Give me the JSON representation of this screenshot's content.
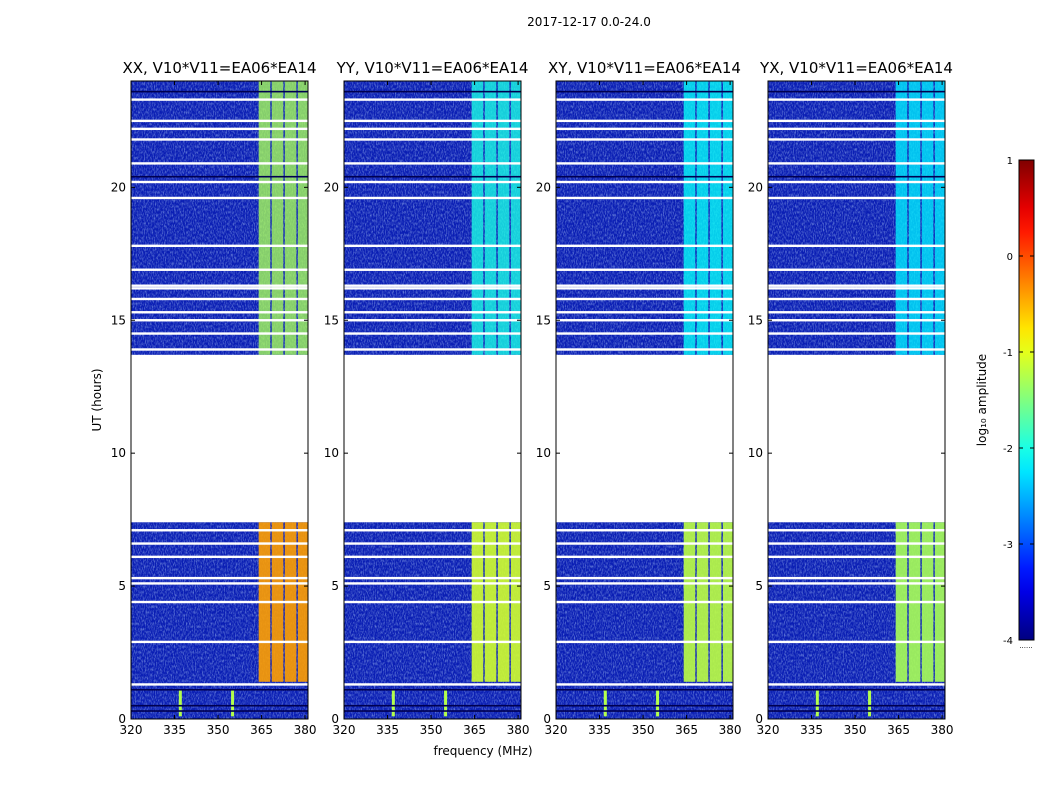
{
  "suptitle": "2017-12-17 0.0-24.0",
  "chart_data": [
    {
      "type": "heatmap",
      "title": "XX, V10*V11=EA06*EA14",
      "polarization": "XX",
      "xlabel": "",
      "ylabel": "UT (hours)",
      "xlim": [
        320,
        381
      ],
      "ylim": [
        0,
        24
      ],
      "xticks": [
        320,
        335,
        350,
        365,
        380
      ],
      "yticks": [
        0,
        5,
        10,
        15,
        20
      ],
      "band_log_amplitude": -0.4
    },
    {
      "type": "heatmap",
      "title": "YY, V10*V11=EA06*EA14",
      "polarization": "YY",
      "xlabel": "",
      "ylabel": "",
      "xlim": [
        320,
        381
      ],
      "ylim": [
        0,
        24
      ],
      "xticks": [
        320,
        335,
        350,
        365,
        380
      ],
      "yticks": [
        0,
        5,
        10,
        15,
        20
      ],
      "band_log_amplitude": -1.1
    },
    {
      "type": "heatmap",
      "title": "XY, V10*V11=EA06*EA14",
      "polarization": "XY",
      "xlabel": "",
      "ylabel": "",
      "xlim": [
        320,
        381
      ],
      "ylim": [
        0,
        24
      ],
      "xticks": [
        320,
        335,
        350,
        365,
        380
      ],
      "yticks": [
        0,
        5,
        10,
        15,
        20
      ],
      "band_log_amplitude": -1.2
    },
    {
      "type": "heatmap",
      "title": "YX, V10*V11=EA06*EA14",
      "polarization": "YX",
      "xlabel": "",
      "ylabel": "",
      "xlim": [
        320,
        381
      ],
      "ylim": [
        0,
        24
      ],
      "xticks": [
        320,
        335,
        350,
        365,
        380
      ],
      "yticks": [
        0,
        5,
        10,
        15,
        20
      ],
      "band_log_amplitude": -1.3
    }
  ],
  "shared_xlabel": "frequency (MHz)",
  "band_channels": [
    [
      364,
      368
    ],
    [
      368.5,
      372.5
    ],
    [
      373,
      377
    ],
    [
      377.5,
      381
    ]
  ],
  "rfi_lines_mhz": [
    337,
    355
  ],
  "data_gap_ut": [
    7.4,
    13.7
  ],
  "flagged_rows_ut": [
    1.3,
    2.9,
    4.4,
    5.1,
    5.3,
    6.1,
    6.6,
    7.1,
    13.9,
    14.5,
    15.0,
    15.3,
    15.8,
    16.2,
    16.3,
    16.9,
    17.8,
    19.6,
    20.2,
    20.9,
    21.8,
    22.2,
    22.5,
    23.3
  ],
  "colorbar": {
    "label": "log$_{10}$ amplitude",
    "label_display": "log₁₀ amplitude",
    "ticks": [
      1,
      0,
      -1,
      -2,
      -3,
      -4
    ],
    "vmin": -4,
    "vmax": 1,
    "colormap": "jet",
    "under_label": "......"
  }
}
